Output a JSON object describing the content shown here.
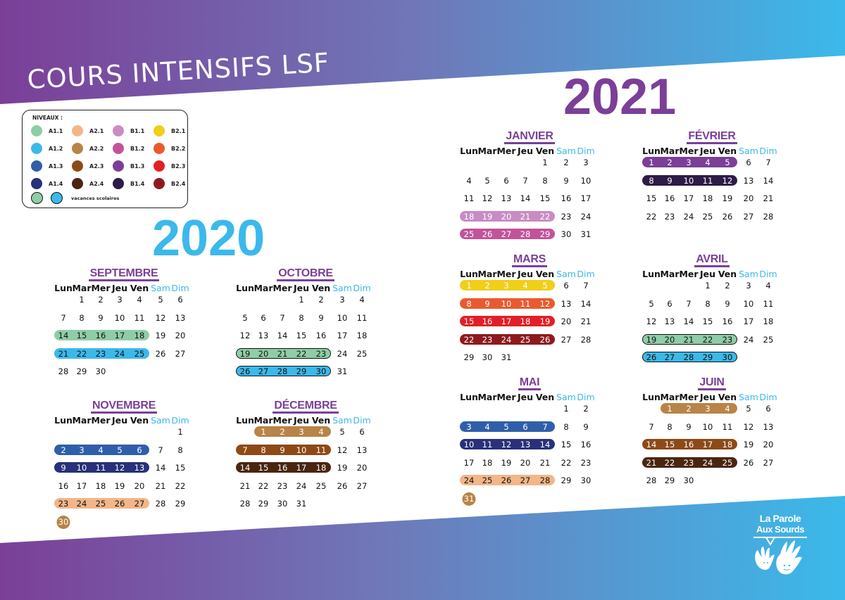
{
  "header": {
    "title": "COURS INTENSIFS LSF"
  },
  "years": {
    "y2020": "2020",
    "y2021": "2021"
  },
  "legend": {
    "title": "NIVEAUX :",
    "levels": [
      {
        "label": "A1.1",
        "color": "#8fcda6"
      },
      {
        "label": "A1.2",
        "color": "#3bb9ea"
      },
      {
        "label": "A1.3",
        "color": "#2f5fa8"
      },
      {
        "label": "A1.4",
        "color": "#283179"
      },
      {
        "label": "A2.1",
        "color": "#f2b68a"
      },
      {
        "label": "A2.2",
        "color": "#b88447"
      },
      {
        "label": "A2.3",
        "color": "#8d4a17"
      },
      {
        "label": "A2.4",
        "color": "#4a2611"
      },
      {
        "label": "B1.1",
        "color": "#c88cc4"
      },
      {
        "label": "B1.2",
        "color": "#c2539b"
      },
      {
        "label": "B1.3",
        "color": "#7b3f98"
      },
      {
        "label": "B1.4",
        "color": "#2e1b47"
      },
      {
        "label": "B2.1",
        "color": "#f0cf1a"
      },
      {
        "label": "B2.2",
        "color": "#e95a2f"
      },
      {
        "label": "B2.3",
        "color": "#e31e26"
      },
      {
        "label": "B2.4",
        "color": "#8e1a1f"
      }
    ],
    "vacances": {
      "label": "vacances scolaires",
      "colors": [
        "#8fcda6",
        "#3bb9ea"
      ]
    }
  },
  "weekdays": [
    "Lun",
    "Mar",
    "Mer",
    "Jeu",
    "Ven",
    "Sam",
    "Dim"
  ],
  "months": [
    {
      "name": "SEPTEMBRE",
      "year": 2020,
      "start": 1,
      "days": 30,
      "highlights": [
        {
          "week": 2,
          "level": "A1.1",
          "vac": false
        },
        {
          "week": 3,
          "level": "A1.2",
          "vac": false
        }
      ]
    },
    {
      "name": "OCTOBRE",
      "year": 2020,
      "start": 3,
      "days": 31,
      "highlights": [
        {
          "week": 3,
          "level": "A1.1",
          "vac": true
        },
        {
          "week": 4,
          "level": "A1.2",
          "vac": true
        }
      ]
    },
    {
      "name": "NOVEMBRE",
      "year": 2020,
      "start": 6,
      "days": 30,
      "highlights": [
        {
          "week": 1,
          "level": "A1.3",
          "vac": false
        },
        {
          "week": 2,
          "level": "A1.4",
          "vac": false
        },
        {
          "week": 4,
          "level": "A2.1",
          "vac": false
        }
      ],
      "circles": [
        {
          "day": 30,
          "level": "A2.2"
        }
      ]
    },
    {
      "name": "DÉCEMBRE",
      "year": 2020,
      "start": 1,
      "days": 31,
      "highlights": [
        {
          "week": 0,
          "level": "A2.2",
          "vac": false
        },
        {
          "week": 1,
          "level": "A2.3",
          "vac": false
        },
        {
          "week": 2,
          "level": "A2.4",
          "vac": false
        }
      ]
    },
    {
      "name": "JANVIER",
      "year": 2021,
      "start": 4,
      "days": 31,
      "highlights": [
        {
          "week": 3,
          "level": "B1.1",
          "vac": false
        },
        {
          "week": 4,
          "level": "B1.2",
          "vac": false
        }
      ]
    },
    {
      "name": "FÉVRIER",
      "year": 2021,
      "start": 0,
      "days": 28,
      "highlights": [
        {
          "week": 0,
          "level": "B1.3",
          "vac": false
        },
        {
          "week": 1,
          "level": "B1.4",
          "vac": false
        }
      ]
    },
    {
      "name": "MARS",
      "year": 2021,
      "start": 0,
      "days": 31,
      "highlights": [
        {
          "week": 0,
          "level": "B2.1",
          "vac": false
        },
        {
          "week": 1,
          "level": "B2.2",
          "vac": false
        },
        {
          "week": 2,
          "level": "B2.3",
          "vac": false
        },
        {
          "week": 3,
          "level": "B2.4",
          "vac": false
        }
      ]
    },
    {
      "name": "AVRIL",
      "year": 2021,
      "start": 3,
      "days": 30,
      "highlights": [
        {
          "week": 3,
          "level": "A1.1",
          "vac": true
        },
        {
          "week": 4,
          "level": "A1.2",
          "vac": true
        }
      ]
    },
    {
      "name": "MAI",
      "year": 2021,
      "start": 5,
      "days": 31,
      "highlights": [
        {
          "week": 1,
          "level": "A1.3",
          "vac": false
        },
        {
          "week": 2,
          "level": "A1.4",
          "vac": false
        },
        {
          "week": 4,
          "level": "A2.1",
          "vac": false
        }
      ],
      "circles": [
        {
          "day": 31,
          "level": "A2.2"
        }
      ]
    },
    {
      "name": "JUIN",
      "year": 2021,
      "start": 1,
      "days": 30,
      "highlights": [
        {
          "week": 0,
          "level": "A2.2",
          "vac": false
        },
        {
          "week": 2,
          "level": "A2.3",
          "vac": false
        },
        {
          "week": 3,
          "level": "A2.4",
          "vac": false
        }
      ]
    }
  ],
  "logo": {
    "line1": "La Parole",
    "line2": "Aux Sourds"
  },
  "colors": {
    "purple": "#7b3f98",
    "cyan": "#3bb9ea"
  }
}
